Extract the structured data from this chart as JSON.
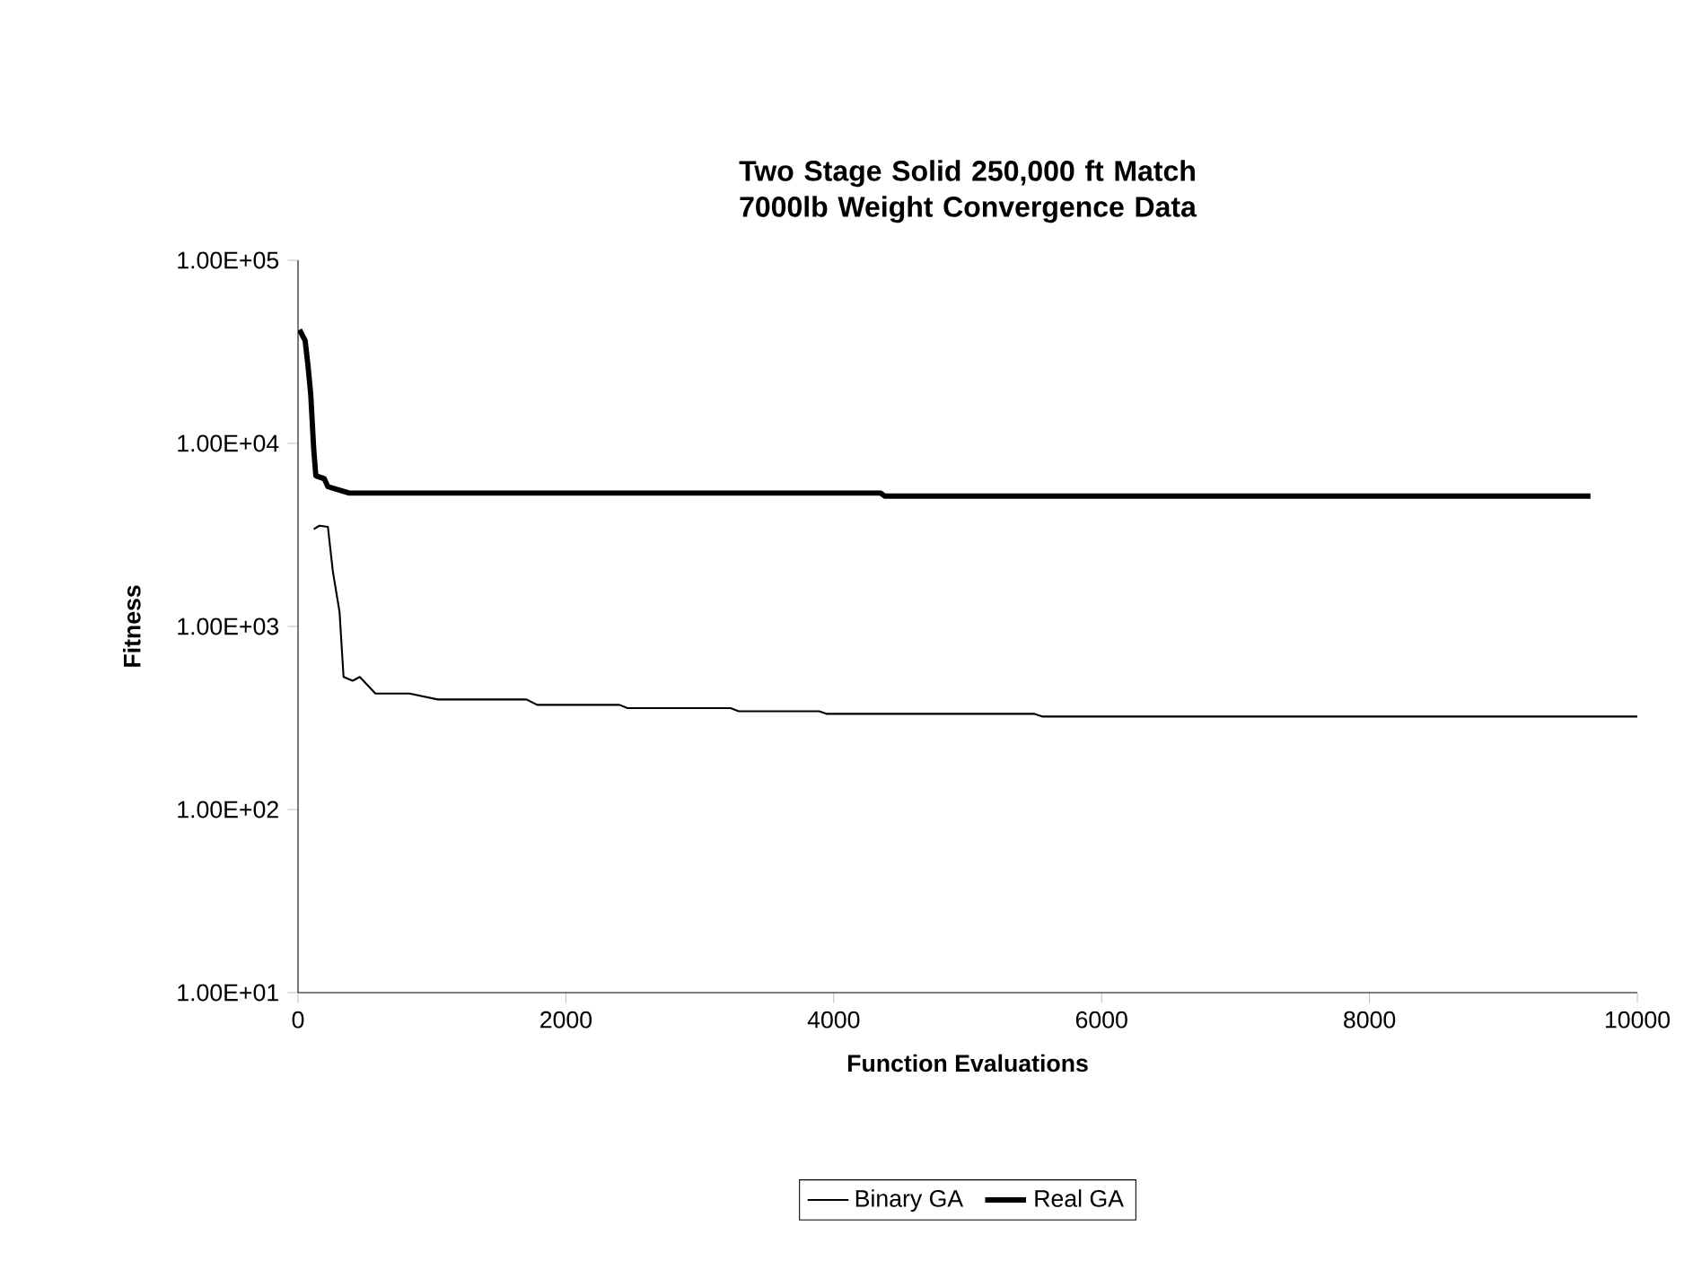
{
  "chart_data": {
    "type": "line",
    "title": "Two Stage Solid 250,000 ft Match 7000lb Weight Convergence Data",
    "xlabel": "Function Evaluations",
    "ylabel": "Fitness",
    "xlim": [
      0,
      10000
    ],
    "xticks": [
      0,
      2000,
      4000,
      6000,
      8000,
      10000
    ],
    "ylim": [
      10,
      100000
    ],
    "log": "y",
    "yticks": [
      {
        "value": 10,
        "label": "1.00E+01"
      },
      {
        "value": 100,
        "label": "1.00E+02"
      },
      {
        "value": 1000,
        "label": "1.00E+03"
      },
      {
        "value": 10000,
        "label": "1.00E+04"
      },
      {
        "value": 100000,
        "label": "1.00E+05"
      }
    ],
    "grid": false,
    "legend": "bottom",
    "series": [
      {
        "name": "Binary GA",
        "color": "#000000",
        "x": [
          117,
          160,
          223,
          260,
          310,
          340,
          408,
          461,
          578,
          832,
          1044,
          1706,
          1786,
          2400,
          2460,
          3230,
          3290,
          3890,
          3950,
          5500,
          5560,
          10000
        ],
        "values": [
          3400,
          3550,
          3500,
          2000,
          1200,
          530,
          505,
          530,
          430,
          430,
          399,
          399,
          373,
          373,
          358,
          358,
          344,
          344,
          333,
          333,
          322,
          322
        ]
      },
      {
        "name": "Real GA",
        "color": "#000000",
        "x": [
          11,
          53,
          74,
          95,
          117,
          133,
          196,
          223,
          382,
          4350,
          4380,
          9650
        ],
        "values": [
          41700,
          36500,
          26800,
          18500,
          9340,
          6650,
          6410,
          5800,
          5350,
          5350,
          5150,
          5150
        ]
      }
    ]
  }
}
